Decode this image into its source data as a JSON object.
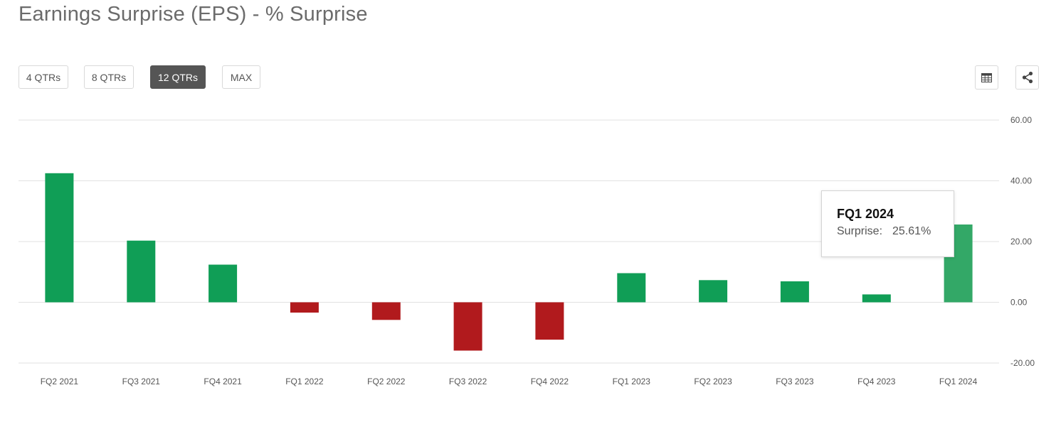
{
  "title": "Earnings Surprise (EPS) - % Surprise",
  "range_buttons": [
    {
      "label": "4 QTRs",
      "active": false
    },
    {
      "label": "8 QTRs",
      "active": false
    },
    {
      "label": "12 QTRs",
      "active": true
    },
    {
      "label": "MAX",
      "active": false
    }
  ],
  "icons": {
    "table": "table-icon",
    "share": "share-icon"
  },
  "colors": {
    "positive": "#109e56",
    "negative": "#b11a1d",
    "highlight": "#33a867"
  },
  "tooltip": {
    "title": "FQ1 2024",
    "label": "Surprise:",
    "value": "25.61%"
  },
  "chart_data": {
    "type": "bar",
    "title": "Earnings Surprise (EPS) - % Surprise",
    "categories": [
      "FQ2 2021",
      "FQ3 2021",
      "FQ4 2021",
      "FQ1 2022",
      "FQ2 2022",
      "FQ3 2022",
      "FQ4 2022",
      "FQ1 2023",
      "FQ2 2023",
      "FQ3 2023",
      "FQ4 2023",
      "FQ1 2024"
    ],
    "values": [
      42.5,
      20.3,
      12.4,
      -3.4,
      -5.8,
      -15.9,
      -12.3,
      9.6,
      7.3,
      6.9,
      2.6,
      25.61
    ],
    "ylim": [
      -20,
      60
    ],
    "yticks": [
      60,
      40,
      20,
      0,
      -20
    ],
    "ytick_labels": [
      "60.00",
      "40.00",
      "20.00",
      "0.00",
      "-20.00"
    ],
    "y_axis_side": "right",
    "grid": true,
    "highlighted_category": "FQ1 2024"
  }
}
